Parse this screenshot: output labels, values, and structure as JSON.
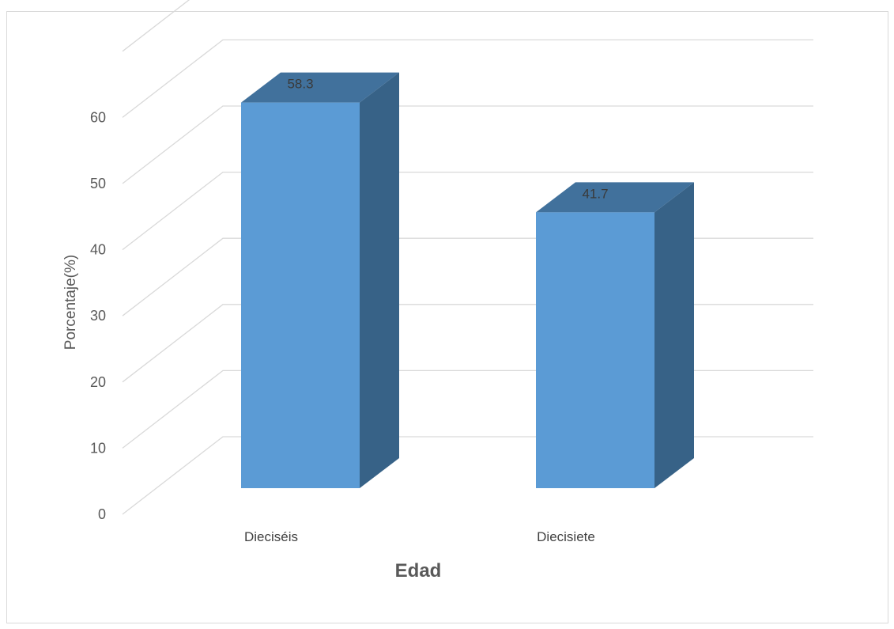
{
  "chart_data": {
    "type": "bar",
    "categories": [
      "Dieciséis",
      "Diecisiete"
    ],
    "values": [
      58.3,
      41.7
    ],
    "data_labels": [
      "58.3",
      "41.7"
    ],
    "title": "",
    "xlabel": "Edad",
    "ylabel": "Porcentaje(%)",
    "ylim": [
      0,
      70
    ],
    "yticks": [
      "0",
      "10",
      "20",
      "30",
      "40",
      "50",
      "60"
    ],
    "grid": true,
    "style": "3d-column",
    "colors": {
      "front": "#5b9bd5",
      "side": "#376287",
      "top": "#41719c",
      "grid": "#d9d9d9"
    }
  }
}
